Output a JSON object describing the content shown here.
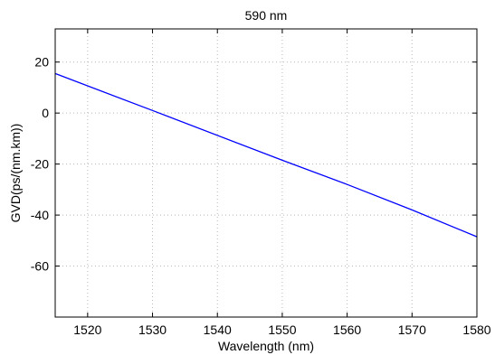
{
  "chart_data": {
    "type": "line",
    "title": "590 nm",
    "xlabel": "Wavelength (nm)",
    "ylabel": "GVD(ps/(nm.km))",
    "xlim": [
      1515,
      1580
    ],
    "ylim": [
      -80,
      33
    ],
    "xticks": [
      1520,
      1530,
      1540,
      1550,
      1560,
      1570,
      1580
    ],
    "yticks": [
      20,
      0,
      -20,
      -40,
      -60
    ],
    "grid": true,
    "series": [
      {
        "color": "#0000ff",
        "x": [
          1515,
          1530,
          1550,
          1560,
          1570,
          1580
        ],
        "y": [
          15.5,
          1.0,
          -18.5,
          -28.0,
          -38.0,
          -48.5
        ]
      }
    ]
  }
}
